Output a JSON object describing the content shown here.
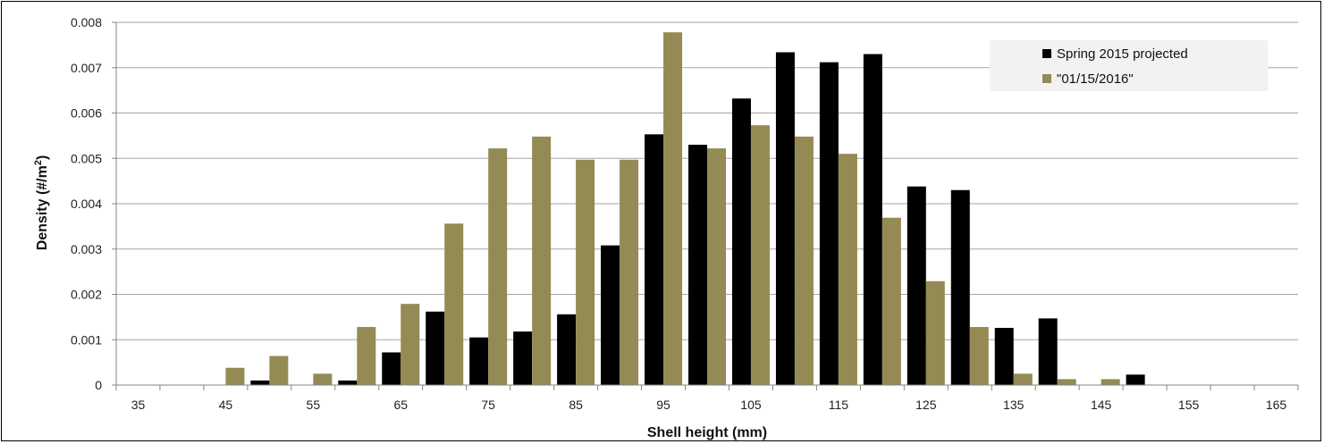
{
  "chart_data": {
    "type": "bar",
    "xlabel": "Shell height (mm)",
    "ylabel": "Density (#/m2)",
    "ylabel_parts": {
      "main": "Density (#/m",
      "sup": "2",
      "close": ")"
    },
    "ylim": [
      0,
      0.008
    ],
    "yticks": [
      "0",
      "0.001",
      "0.002",
      "0.003",
      "0.004",
      "0.005",
      "0.006",
      "0.007",
      "0.008"
    ],
    "categories": [
      35,
      40,
      45,
      50,
      55,
      60,
      65,
      70,
      75,
      80,
      85,
      90,
      95,
      100,
      105,
      110,
      115,
      120,
      125,
      130,
      135,
      140,
      145,
      150,
      155,
      160,
      165
    ],
    "xtick_labels": [
      "35",
      "45",
      "55",
      "65",
      "75",
      "85",
      "95",
      "105",
      "115",
      "125",
      "135",
      "145",
      "155",
      "165"
    ],
    "grid": true,
    "legend_position": "top-right",
    "series": [
      {
        "name": "Spring 2015 projected",
        "color": "#000000",
        "values": [
          0,
          0,
          0,
          0.0001,
          0,
          0.0001,
          0.00072,
          0.00162,
          0.00105,
          0.00118,
          0.00156,
          0.00308,
          0.00553,
          0.0053,
          0.00632,
          0.00734,
          0.00712,
          0.0073,
          0.00438,
          0.0043,
          0.00126,
          0.00147,
          0,
          0.00023,
          0,
          0,
          0
        ]
      },
      {
        "name": "\"01/15/2016\"",
        "color": "#948a54",
        "values": [
          0,
          0,
          0.00038,
          0.00064,
          0.00025,
          0.00128,
          0.00179,
          0.00356,
          0.00522,
          0.00548,
          0.00497,
          0.00497,
          0.00778,
          0.00522,
          0.00573,
          0.00548,
          0.0051,
          0.00369,
          0.00229,
          0.00128,
          0.00025,
          0.00013,
          0.00013,
          0,
          0,
          0,
          0
        ]
      }
    ]
  }
}
